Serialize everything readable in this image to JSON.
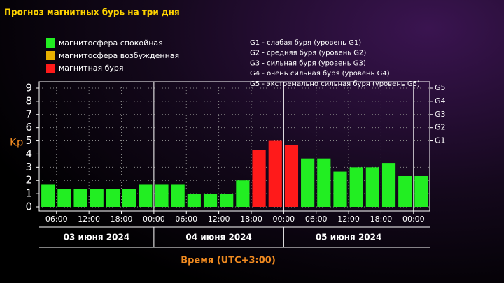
{
  "chart_data": {
    "type": "bar",
    "title": "Прогноз магнитных бурь на три дня",
    "y_label": "Kp",
    "x_label": "Время (UTC+3:00)",
    "legend": [
      {
        "name": "магнитосфера спокойная",
        "color": "#22ee22"
      },
      {
        "name": "магнитосфера возбужденная",
        "color": "#e8b000"
      },
      {
        "name": "магнитная буря",
        "color": "#ff1a1a"
      }
    ],
    "storm_levels": [
      "G1 - слабая буря (уровень G1)",
      "G2 - средняя буря (уровень G2)",
      "G3 - сильная буря (уровень G3)",
      "G4 - очень сильная буря (уровень G4)",
      "G5 - экстремально сильная буря (уровень G5)"
    ],
    "categories": [
      null,
      null,
      null,
      null,
      null,
      null,
      null,
      null,
      null,
      null,
      null,
      null,
      null,
      null,
      null,
      null,
      null,
      null,
      null,
      null,
      null,
      null,
      null,
      null
    ],
    "values": [
      1.67,
      1.33,
      1.33,
      1.33,
      1.33,
      1.33,
      1.67,
      1.67,
      1.67,
      1.0,
      1.0,
      1.0,
      2.0,
      4.33,
      5.0,
      4.67,
      3.67,
      3.67,
      2.67,
      3.0,
      3.0,
      3.33,
      2.33,
      2.33
    ],
    "colors": [
      "#22ee22",
      "#22ee22",
      "#22ee22",
      "#22ee22",
      "#22ee22",
      "#22ee22",
      "#22ee22",
      "#22ee22",
      "#22ee22",
      "#22ee22",
      "#22ee22",
      "#22ee22",
      "#22ee22",
      "#ff1a1a",
      "#ff1a1a",
      "#ff1a1a",
      "#22ee22",
      "#22ee22",
      "#22ee22",
      "#22ee22",
      "#22ee22",
      "#22ee22",
      "#22ee22",
      "#22ee22"
    ],
    "ylim": [
      0,
      9
    ],
    "yticks": [
      0,
      1,
      2,
      3,
      4,
      5,
      6,
      7,
      8,
      9
    ],
    "y2lim": [
      0,
      9
    ],
    "y2ticks": [
      {
        "value": 5,
        "label": "G1"
      },
      {
        "value": 6,
        "label": "G2"
      },
      {
        "value": 7,
        "label": "G3"
      },
      {
        "value": 8,
        "label": "G4"
      },
      {
        "value": 9,
        "label": "G5"
      }
    ],
    "xticks": [
      "06:00",
      "12:00",
      "18:00",
      "00:00",
      "06:00",
      "12:00",
      "18:00",
      "00:00",
      "06:00",
      "12:00",
      "18:00",
      "00:00"
    ],
    "dates": [
      "03 июня 2024",
      "04 июня 2024",
      "05 июня 2024"
    ],
    "grid": true
  }
}
